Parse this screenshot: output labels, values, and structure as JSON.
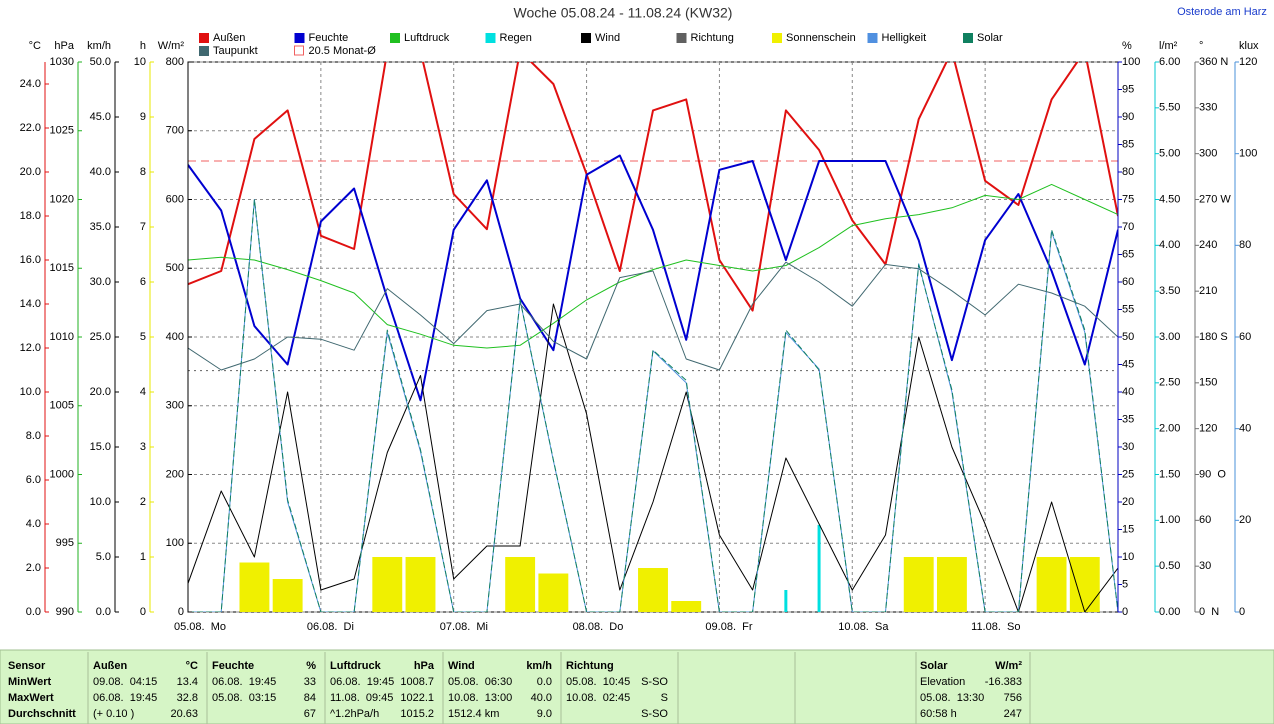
{
  "chart_data": {
    "type": "line",
    "title": "Woche 05.08.24 - 11.08.24 (KW32)",
    "station": "Osterode am Harz",
    "xlim": [
      0,
      7
    ],
    "xticks": [
      {
        "value": 0,
        "label": "05.08.  Mo"
      },
      {
        "value": 1,
        "label": "06.08.  Di"
      },
      {
        "value": 2,
        "label": "07.08.  Mi"
      },
      {
        "value": 3,
        "label": "08.08.  Do"
      },
      {
        "value": 4,
        "label": "09.08.  Fr"
      },
      {
        "value": 5,
        "label": "10.08.  Sa"
      },
      {
        "value": 6,
        "label": "11.08.  So"
      }
    ],
    "x": [
      0,
      0.25,
      0.5,
      0.75,
      1,
      1.25,
      1.5,
      1.75,
      2,
      2.25,
      2.5,
      2.75,
      3,
      3.25,
      3.5,
      3.75,
      4,
      4.25,
      4.5,
      4.75,
      5,
      5.25,
      5.5,
      5.75,
      6,
      6.25,
      6.5,
      6.75,
      7
    ],
    "axes": [
      {
        "unit": "°C",
        "side": "left",
        "color": "#e01010",
        "lim": [
          0,
          25
        ],
        "ticks": [
          {
            "value": 0,
            "label": "0.0"
          },
          {
            "value": 2,
            "label": "2.0"
          },
          {
            "value": 4,
            "label": "4.0"
          },
          {
            "value": 6,
            "label": "6.0"
          },
          {
            "value": 8,
            "label": "8.0"
          },
          {
            "value": 10,
            "label": "10.0"
          },
          {
            "value": 12,
            "label": "12.0"
          },
          {
            "value": 14,
            "label": "14.0"
          },
          {
            "value": 16,
            "label": "16.0"
          },
          {
            "value": 18,
            "label": "18.0"
          },
          {
            "value": 20,
            "label": "20.0"
          },
          {
            "value": 22,
            "label": "22.0"
          },
          {
            "value": 24,
            "label": "24.0"
          }
        ]
      },
      {
        "unit": "hPa",
        "side": "left",
        "color": "#20b020",
        "lim": [
          990,
          1030
        ],
        "ticks": [
          990,
          995,
          1000,
          1005,
          1010,
          1015,
          1020,
          1025,
          1030
        ]
      },
      {
        "unit": "km/h",
        "side": "left",
        "color": "#000000",
        "lim": [
          0,
          50
        ],
        "ticks": [
          {
            "value": 0,
            "label": "0.0"
          },
          {
            "value": 5,
            "label": "5.0"
          },
          {
            "value": 10,
            "label": "10.0"
          },
          {
            "value": 15,
            "label": "15.0"
          },
          {
            "value": 20,
            "label": "20.0"
          },
          {
            "value": 25,
            "label": "25.0"
          },
          {
            "value": 30,
            "label": "30.0"
          },
          {
            "value": 35,
            "label": "35.0"
          },
          {
            "value": 40,
            "label": "40.0"
          },
          {
            "value": 45,
            "label": "45.0"
          },
          {
            "value": 50,
            "label": "50.0"
          }
        ]
      },
      {
        "unit": "h",
        "side": "left",
        "color": "#e8e800",
        "lim": [
          0,
          10
        ],
        "ticks": [
          0,
          1,
          2,
          3,
          4,
          5,
          6,
          7,
          8,
          9,
          10
        ]
      },
      {
        "unit": "W/m²",
        "side": "left",
        "color": "#000000",
        "lim": [
          0,
          800
        ],
        "grid": true,
        "ticks": [
          0,
          100,
          200,
          300,
          400,
          500,
          600,
          700,
          800
        ]
      },
      {
        "unit": "%",
        "side": "right",
        "color": "#0000c0",
        "lim": [
          0,
          100
        ],
        "ticks": [
          0,
          5,
          10,
          15,
          20,
          25,
          30,
          35,
          40,
          45,
          50,
          55,
          60,
          65,
          70,
          75,
          80,
          85,
          90,
          95,
          100
        ]
      },
      {
        "unit": "l/m²",
        "side": "right",
        "color": "#00c8d0",
        "lim": [
          0,
          6
        ],
        "ticks": [
          {
            "value": 0,
            "label": "0.00"
          },
          {
            "value": 0.5,
            "label": "0.50"
          },
          {
            "value": 1,
            "label": "1.00"
          },
          {
            "value": 1.5,
            "label": "1.50"
          },
          {
            "value": 2,
            "label": "2.00"
          },
          {
            "value": 2.5,
            "label": "2.50"
          },
          {
            "value": 3,
            "label": "3.00"
          },
          {
            "value": 3.5,
            "label": "3.50"
          },
          {
            "value": 4,
            "label": "4.00"
          },
          {
            "value": 4.5,
            "label": "4.50"
          },
          {
            "value": 5,
            "label": "5.00"
          },
          {
            "value": 5.5,
            "label": "5.50"
          },
          {
            "value": 6,
            "label": "6.00"
          }
        ]
      },
      {
        "unit": "°",
        "side": "right",
        "color": "#707070",
        "lim": [
          0,
          360
        ],
        "ticks": [
          {
            "value": 0,
            "label": "0  N"
          },
          30,
          60,
          {
            "value": 90,
            "label": "90  O"
          },
          120,
          150,
          {
            "value": 180,
            "label": "180 S"
          },
          210,
          240,
          {
            "value": 270,
            "label": "270 W"
          },
          300,
          330,
          {
            "value": 360,
            "label": "360 N"
          }
        ]
      },
      {
        "unit": "klux",
        "side": "right",
        "color": "#4a90d8",
        "lim": [
          0,
          120
        ],
        "ticks": [
          0,
          20,
          40,
          60,
          80,
          100,
          120
        ]
      }
    ],
    "monthly_mean": {
      "value": 20.5,
      "label": "20.5 Monat-Ø",
      "color": "#f06060",
      "axis": 0
    },
    "series": [
      {
        "name": "Außen",
        "color": "#e01010",
        "axis": 0,
        "type": "line",
        "line_style": "solid",
        "values": [
          14.9,
          15.5,
          21.5,
          22.8,
          17.1,
          16.5,
          25.5,
          25.5,
          19.0,
          17.4,
          25.5,
          24.0,
          19.9,
          15.5,
          22.8,
          23.3,
          16.0,
          13.7,
          22.8,
          21.0,
          17.8,
          15.8,
          22.4,
          25.5,
          19.6,
          18.5,
          23.3,
          25.5,
          18.0
        ]
      },
      {
        "name": "Feuchte",
        "color": "#0000d0",
        "axis": 5,
        "type": "line",
        "line_style": "solid",
        "values": [
          81.3,
          73,
          52,
          45,
          71,
          77,
          57,
          38.5,
          69.5,
          78.5,
          57,
          47.6,
          79.5,
          83,
          69.5,
          49.5,
          80.4,
          82,
          64,
          82,
          82,
          82,
          67.6,
          45.8,
          67.6,
          76,
          62,
          45,
          69.5
        ]
      },
      {
        "name": "Luftdruck",
        "color": "#20c020",
        "axis": 1,
        "type": "line",
        "line_style": "solid",
        "values": [
          1015.6,
          1015.8,
          1015.6,
          1014.9,
          1014.1,
          1013.2,
          1010.9,
          1010.2,
          1009.4,
          1009.2,
          1009.4,
          1011.0,
          1012.7,
          1014.0,
          1014.9,
          1015.6,
          1015.2,
          1014.8,
          1015.2,
          1016.5,
          1018.1,
          1018.6,
          1018.9,
          1019.4,
          1020.3,
          1020.0,
          1021.1,
          1020.0,
          1018.9
        ]
      },
      {
        "name": "Regen",
        "color": "#00e0e0",
        "axis": 6,
        "type": "bar",
        "values": [
          0,
          0,
          0,
          0,
          0,
          0,
          0,
          0,
          0,
          0,
          0,
          0.1,
          0,
          0,
          0,
          0,
          0,
          0,
          0.24,
          0.95,
          0,
          0,
          0,
          0,
          0,
          0,
          0,
          0,
          0
        ]
      },
      {
        "name": "Wind",
        "color": "#000000",
        "axis": 2,
        "type": "line",
        "line_style": "solid",
        "values": [
          2.6,
          11.0,
          5.0,
          20.0,
          2.0,
          3.0,
          14.5,
          21.5,
          3.0,
          6.0,
          6.0,
          28.0,
          18.0,
          2.0,
          10.0,
          20.0,
          7.0,
          2.0,
          14.0,
          8.0,
          2.0,
          7.0,
          25.0,
          15.0,
          8.0,
          0,
          10.0,
          0,
          4.0
        ]
      },
      {
        "name": "Richtung",
        "color": "#606060",
        "axis": 7,
        "type": "line",
        "line_style": "dotted",
        "values": [
          158,
          158,
          158,
          158,
          158,
          158,
          158,
          158,
          158,
          158,
          158,
          158,
          158,
          158,
          158,
          158,
          158,
          158,
          158,
          158,
          158,
          158,
          158,
          158,
          158,
          158,
          158,
          158,
          158
        ]
      },
      {
        "name": "Sonnenschein",
        "color": "#f0f000",
        "axis": 3,
        "type": "bar",
        "values": [
          0,
          0,
          0.9,
          0.6,
          0,
          0,
          1.0,
          1.0,
          0,
          0,
          1.0,
          0.7,
          0,
          0,
          0.8,
          0.2,
          0,
          0,
          0,
          0,
          0,
          0,
          1.0,
          1.0,
          0,
          0,
          1.0,
          1.0,
          0
        ]
      },
      {
        "name": "Helligkeit",
        "color": "#5090e0",
        "axis": 8,
        "type": "line",
        "line_style": "solid",
        "values": [
          0,
          0,
          90,
          24,
          0,
          0,
          61,
          35,
          0,
          0,
          68,
          33,
          0,
          0,
          57,
          50,
          0,
          0,
          61,
          53,
          0,
          0,
          76,
          48,
          0,
          0,
          83,
          61,
          0
        ]
      },
      {
        "name": "Solar",
        "color": "#108060",
        "axis": 4,
        "type": "line",
        "line_style": "dashed",
        "values": [
          0,
          0,
          600,
          163,
          0,
          0,
          410,
          236,
          0,
          0,
          454,
          221,
          0,
          0,
          381,
          337,
          0,
          0,
          410,
          352,
          0,
          0,
          505,
          323,
          0,
          0,
          556,
          410,
          0
        ]
      },
      {
        "name": "Taupunkt",
        "color": "#406870",
        "axis": 0,
        "type": "line",
        "line_style": "solid",
        "values": [
          12.0,
          11.0,
          11.5,
          12.5,
          12.4,
          11.9,
          14.7,
          13.5,
          12.2,
          13.7,
          14.0,
          12.3,
          11.5,
          15.2,
          15.5,
          11.5,
          11.0,
          14.0,
          15.9,
          15.0,
          13.9,
          15.8,
          15.6,
          14.6,
          13.5,
          14.9,
          14.5,
          13.9,
          12.5
        ]
      }
    ]
  },
  "stats": {
    "row_labels": [
      "Sensor",
      "MinWert",
      "MaxWert",
      "Durchschnitt"
    ],
    "columns": [
      {
        "name": "Außen",
        "unit": "°C",
        "rows": [
          [
            "09.08.  04:15",
            13.4
          ],
          [
            "06.08.  19:45",
            32.8
          ],
          [
            "(+ 0.10 )",
            20.63
          ]
        ]
      },
      {
        "name": "Feuchte",
        "unit": "%",
        "rows": [
          [
            "06.08.  19:45",
            33
          ],
          [
            "05.08.  03:15",
            84
          ],
          [
            "",
            67
          ]
        ]
      },
      {
        "name": "Luftdruck",
        "unit": "hPa",
        "rows": [
          [
            "06.08.  19:45",
            1008.7
          ],
          [
            "11.08.  09:45",
            1022.1
          ],
          [
            "^1.2hPa/h",
            1015.2
          ]
        ]
      },
      {
        "name": "Wind",
        "unit": "km/h",
        "rows": [
          [
            "05.08.  06:30",
            "0.0"
          ],
          [
            "10.08.  13:00",
            "40.0"
          ],
          [
            "1512.4 km",
            "9.0"
          ]
        ]
      },
      {
        "name": "Richtung",
        "rows": [
          [
            "05.08.  10:45",
            "S-SO"
          ],
          [
            "10.08.  02:45",
            "S"
          ],
          [
            "",
            "S-SO"
          ]
        ]
      },
      {
        "name": "Solar",
        "unit": "W/m²",
        "rows": [
          [
            "Elevation",
            -16.383
          ],
          [
            "05.08.  13:30",
            756
          ],
          [
            "60:58 h",
            247
          ]
        ]
      }
    ]
  }
}
